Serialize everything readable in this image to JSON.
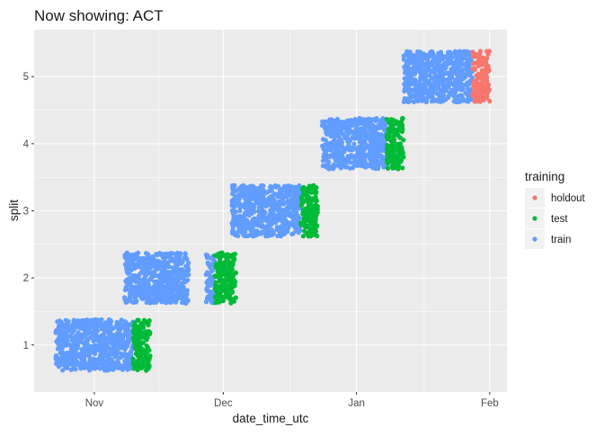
{
  "chart_data": {
    "type": "scatter",
    "title": "Now showing: ACT",
    "xlabel": "date_time_utc",
    "ylabel": "split",
    "x_axis": {
      "ticks": [
        {
          "date": "2018-11-01",
          "label": "Nov"
        },
        {
          "date": "2018-12-01",
          "label": "Dec"
        },
        {
          "date": "2019-01-01",
          "label": "Jan"
        },
        {
          "date": "2019-02-01",
          "label": "Feb"
        }
      ],
      "xlim": [
        "2018-10-18",
        "2019-02-05"
      ]
    },
    "y_axis": {
      "ticks": [
        "1",
        "2",
        "3",
        "4",
        "5"
      ],
      "ylim": [
        0.3,
        5.7
      ]
    },
    "grid": true,
    "legend": {
      "title": "training",
      "position": "right",
      "entries": [
        {
          "name": "holdout",
          "color": "#F8766D"
        },
        {
          "name": "test",
          "color": "#00BA38"
        },
        {
          "name": "train",
          "color": "#619CFF"
        }
      ]
    },
    "series": [
      {
        "name": "train",
        "color": "#619CFF",
        "blocks": [
          {
            "split": 1,
            "from": "2018-10-23",
            "to": "2018-11-10"
          },
          {
            "split": 2,
            "from": "2018-11-08",
            "to": "2018-11-23"
          },
          {
            "split": 2,
            "from": "2018-11-27",
            "to": "2018-11-29"
          },
          {
            "split": 3,
            "from": "2018-12-03",
            "to": "2018-12-19"
          },
          {
            "split": 4,
            "from": "2018-12-24",
            "to": "2019-01-08"
          },
          {
            "split": 5,
            "from": "2019-01-12",
            "to": "2019-01-28"
          }
        ]
      },
      {
        "name": "test",
        "color": "#00BA38",
        "blocks": [
          {
            "split": 1,
            "from": "2018-11-10",
            "to": "2018-11-14"
          },
          {
            "split": 2,
            "from": "2018-11-29",
            "to": "2018-12-04"
          },
          {
            "split": 3,
            "from": "2018-12-19",
            "to": "2018-12-23"
          },
          {
            "split": 4,
            "from": "2019-01-08",
            "to": "2019-01-12"
          }
        ]
      },
      {
        "name": "holdout",
        "color": "#F8766D",
        "blocks": [
          {
            "split": 5,
            "from": "2019-01-28",
            "to": "2019-02-01"
          }
        ]
      }
    ],
    "jitter_height": 0.38
  },
  "colors": {
    "panel_background": "#EBEBEB",
    "grid_major": "#FFFFFF"
  }
}
